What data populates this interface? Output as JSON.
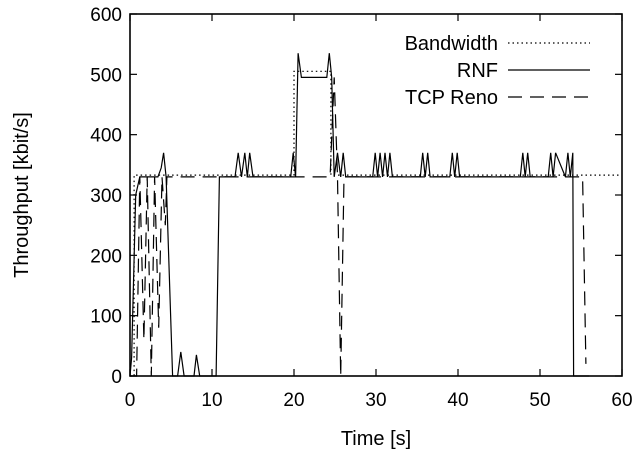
{
  "chart_data": {
    "type": "line",
    "title": "",
    "xlabel": "Time [s]",
    "ylabel": "Throughput [kbit/s]",
    "xlim": [
      0,
      60
    ],
    "ylim": [
      0,
      600
    ],
    "xticks": [
      0,
      10,
      20,
      30,
      40,
      50,
      60
    ],
    "yticks": [
      0,
      100,
      200,
      300,
      400,
      500,
      600
    ],
    "grid": false,
    "legend_position": "top-right",
    "series": [
      {
        "name": "Bandwidth",
        "style": "dotted",
        "x": [
          0,
          0.5,
          0.5,
          20,
          20,
          24.5,
          24.5,
          60
        ],
        "y": [
          0,
          0,
          333,
          333,
          505,
          505,
          333,
          333
        ]
      },
      {
        "name": "RNF",
        "style": "solid",
        "x": [
          0,
          0.2,
          0.7,
          1.2,
          3.4,
          3.8,
          4.1,
          4.4,
          5.2,
          5.8,
          6.2,
          6.6,
          7.8,
          8.1,
          8.5,
          10.5,
          10.9,
          12.8,
          13.2,
          13.6,
          14.0,
          14.3,
          14.6,
          15.0,
          19.6,
          19.9,
          20.2,
          20.5,
          20.9,
          24.0,
          24.3,
          24.6,
          24.9,
          25.3,
          25.7,
          26.0,
          26.3,
          29.6,
          29.9,
          30.2,
          30.5,
          30.8,
          31.1,
          31.4,
          31.7,
          32.0,
          35.4,
          35.7,
          36.0,
          36.3,
          36.6,
          39.0,
          39.3,
          39.6,
          39.9,
          40.2,
          47.6,
          47.9,
          48.2,
          48.5,
          48.8,
          51.0,
          51.3,
          51.6,
          51.9,
          53.1,
          53.4,
          53.7,
          54.0,
          54.1,
          56.0
        ],
        "y": [
          0,
          30,
          300,
          330,
          330,
          345,
          370,
          330,
          0,
          0,
          40,
          0,
          0,
          35,
          0,
          0,
          330,
          330,
          370,
          330,
          370,
          330,
          370,
          330,
          330,
          370,
          330,
          535,
          495,
          495,
          535,
          495,
          330,
          370,
          330,
          370,
          330,
          330,
          370,
          330,
          370,
          330,
          370,
          330,
          370,
          330,
          330,
          370,
          330,
          370,
          330,
          330,
          370,
          330,
          370,
          330,
          330,
          370,
          330,
          370,
          330,
          330,
          370,
          330,
          370,
          330,
          370,
          330,
          370,
          0,
          0
        ]
      },
      {
        "name": "TCP Reno",
        "style": "dashed",
        "x": [
          0,
          0.8,
          1.2,
          1.7,
          2.1,
          2.6,
          3.0,
          3.5,
          3.9,
          4.3,
          4.5,
          20.0,
          24.4,
          24.9,
          25.3,
          25.7,
          26.1,
          26.5,
          26.8,
          54.4,
          54.8,
          55.2,
          55.6
        ],
        "y": [
          0,
          0,
          330,
          60,
          330,
          0,
          330,
          80,
          330,
          250,
          330,
          330,
          330,
          495,
          330,
          0,
          330,
          330,
          330,
          330,
          330,
          330,
          20
        ]
      }
    ]
  },
  "colors": {
    "line": "#000000",
    "background": "#ffffff"
  }
}
